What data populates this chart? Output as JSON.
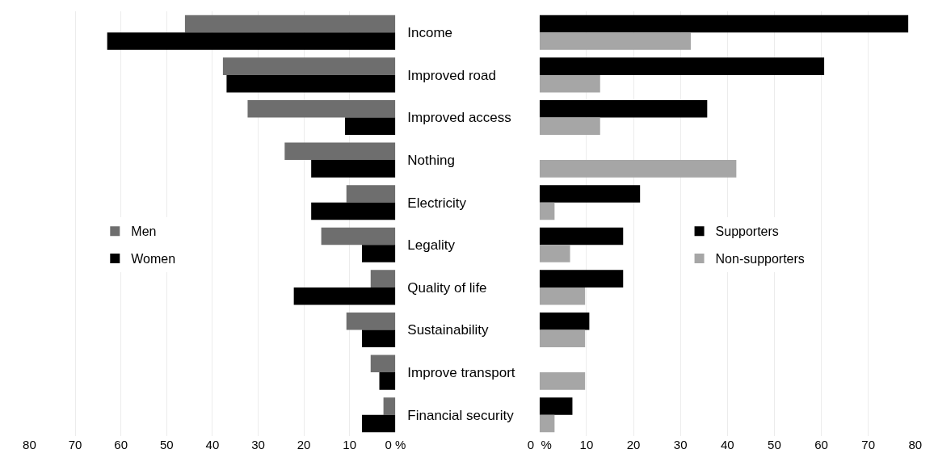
{
  "chart_data": [
    {
      "type": "bar",
      "orientation": "horizontal",
      "categories": [
        "Income",
        "Improved road",
        "Improved access",
        "Nothing",
        "Electricity",
        "Legality",
        "Quality of life",
        "Sustainability",
        "Improve transport",
        "Financial security"
      ],
      "series": [
        {
          "name": "Men",
          "color": "#6e6e6e",
          "values": [
            46,
            37.7,
            32.3,
            24.2,
            10.7,
            16.2,
            5.4,
            10.7,
            5.4,
            2.6
          ]
        },
        {
          "name": "Women",
          "color": "#000000",
          "values": [
            63,
            36.9,
            11,
            18.4,
            18.4,
            7.3,
            22.2,
            7.3,
            3.5,
            7.3
          ]
        }
      ],
      "xlim": [
        80,
        0
      ],
      "xticks": [
        80,
        70,
        60,
        50,
        40,
        30,
        20,
        10,
        {
          "value": 0,
          "label": "0 %"
        }
      ],
      "grid": "x",
      "legend": "left"
    },
    {
      "type": "bar",
      "orientation": "horizontal",
      "categories": [
        null,
        null,
        null,
        null,
        null,
        null,
        null,
        null,
        null,
        null
      ],
      "series": [
        {
          "name": "Supporters",
          "color": "#000000",
          "values": [
            78.5,
            60.6,
            35.7,
            0,
            21.4,
            17.8,
            17.8,
            10.6,
            0,
            7.0
          ]
        },
        {
          "name": "Non-supporters",
          "color": "#a6a6a6",
          "values": [
            32.2,
            12.9,
            12.9,
            41.9,
            3.2,
            6.5,
            9.7,
            9.7,
            9.7,
            3.2
          ]
        }
      ],
      "xlim": [
        0,
        80
      ],
      "xticks": [
        {
          "value": 0,
          "label": "0  %"
        },
        10,
        20,
        30,
        40,
        50,
        60,
        70,
        80
      ],
      "grid": "x",
      "legend": "center",
      "tick_labels": "x"
    }
  ]
}
